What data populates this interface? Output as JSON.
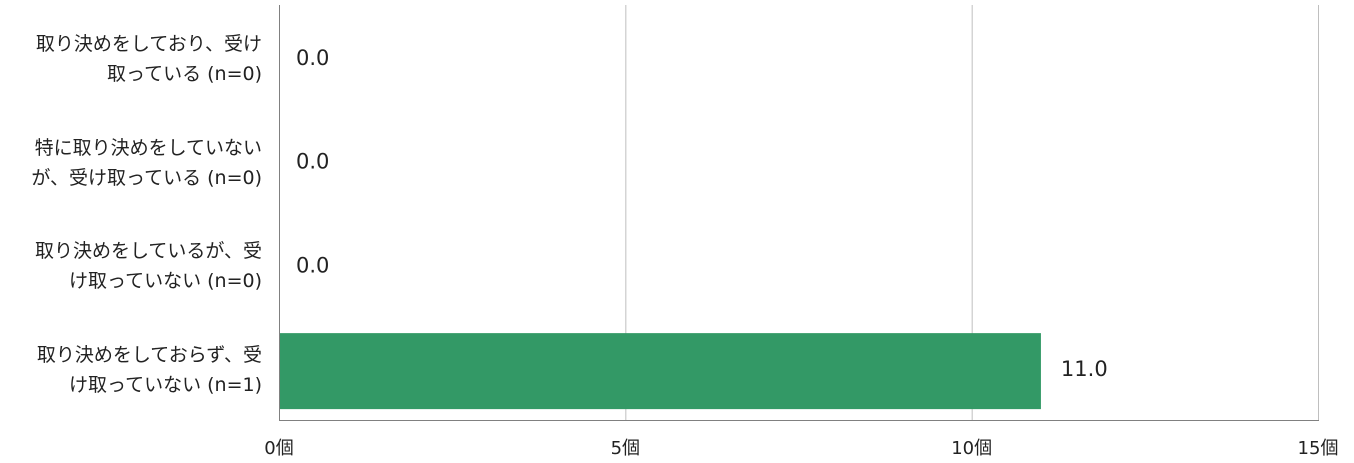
{
  "chart_data": {
    "type": "bar",
    "orientation": "horizontal",
    "categories": [
      "取り決めをしており、受け\n取っている (n=0)",
      "特に取り決めをしていない\nが、受け取っている (n=0)",
      "取り決めをしているが、受\nけ取っていない (n=0)",
      "取り決めをしておらず、受\nけ取っていない (n=1)"
    ],
    "values": [
      0.0,
      0.0,
      0.0,
      11.0
    ],
    "data_labels": [
      "0.0",
      "0.0",
      "0.0",
      "11.0"
    ],
    "x_ticks": [
      0,
      5,
      10,
      15
    ],
    "x_tick_labels": [
      "0個",
      "5個",
      "10個",
      "15個"
    ],
    "xlim": [
      0,
      15
    ],
    "grid": "vertical",
    "legend": "none",
    "bar_color": "#339966",
    "grid_color": "#bfbfbf",
    "axis_color": "#808080",
    "title": "",
    "xlabel": "",
    "ylabel": ""
  }
}
